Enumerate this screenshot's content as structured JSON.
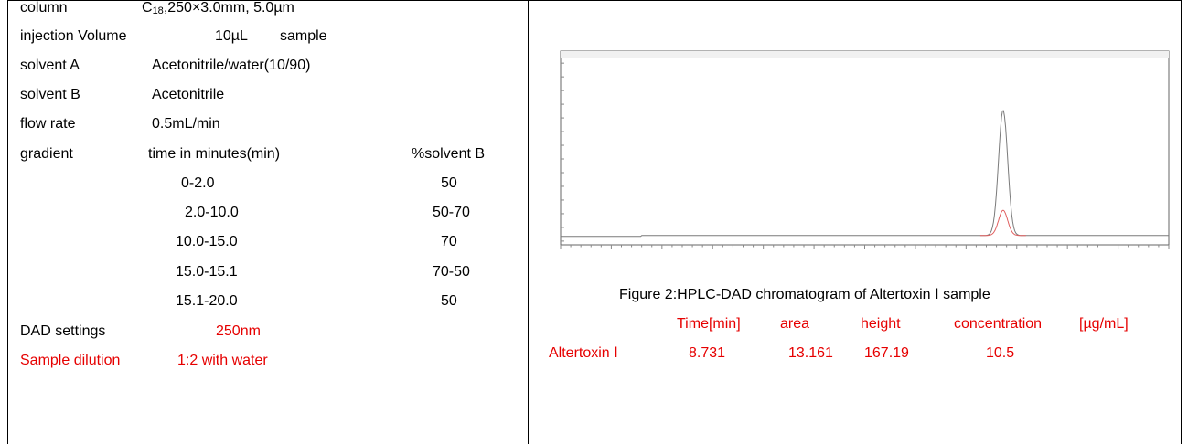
{
  "left": {
    "column": {
      "label": "column",
      "value_prefix": "C",
      "value_sub": "18",
      "value_suffix": ",250×3.0mm, 5.0µm"
    },
    "injection": {
      "label": "injection Volume",
      "value": "10µL",
      "extra": "sample"
    },
    "solvent_a": {
      "label": "solvent A",
      "value": "Acetonitrile/water(10/90)"
    },
    "solvent_b": {
      "label": "solvent B",
      "value": "Acetonitrile"
    },
    "flow_rate": {
      "label": "flow rate",
      "value": "0.5mL/min"
    },
    "gradient": {
      "label": "gradient",
      "col_time": "time in minutes(min)",
      "col_b": "%solvent B",
      "rows": [
        {
          "time": "0-2.0",
          "b": "50"
        },
        {
          "time": "2.0-10.0",
          "b": "50-70"
        },
        {
          "time": "10.0-15.0",
          "b": "70"
        },
        {
          "time": "15.0-15.1",
          "b": "70-50"
        },
        {
          "time": "15.1-20.0",
          "b": "50"
        }
      ]
    },
    "dad": {
      "label": "DAD settings",
      "value": "250nm"
    },
    "dilution": {
      "label": "Sample dilution",
      "value": "1:2 with water"
    }
  },
  "right": {
    "caption": "Figure 2:HPLC-DAD    chromatogram of Altertoxin Ⅰ  sample",
    "results": {
      "headers": [
        "Time[min]",
        "area",
        "height",
        "concentration",
        "[µg/mL]"
      ],
      "row_label": "Altertoxin Ⅰ",
      "values": [
        "8.731",
        "13.161",
        "167.19",
        "10.5"
      ]
    },
    "chart_data": {
      "type": "line",
      "peak": {
        "x": 8.731,
        "height": 167.19
      },
      "xlim": [
        0,
        12
      ],
      "baseline_level": 0.05,
      "peak_level": 0.72
    },
    "accent_color": "#e60000"
  }
}
